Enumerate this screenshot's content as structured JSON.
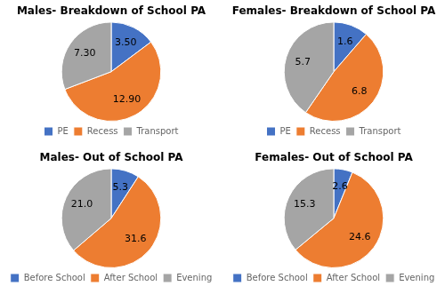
{
  "chart_data": [
    {
      "type": "pie",
      "title": "Males- Breakdown of School PA",
      "categories": [
        "PE",
        "Recess",
        "Transport"
      ],
      "values": [
        3.5,
        12.9,
        7.3
      ],
      "value_labels": [
        "3.50",
        "12.90",
        "7.30"
      ],
      "colors": [
        "#4472C4",
        "#ED7D31",
        "#A5A5A5"
      ],
      "data_labels": true,
      "legend": "bottom"
    },
    {
      "type": "pie",
      "title": "Females- Breakdown of School PA",
      "categories": [
        "PE",
        "Recess",
        "Transport"
      ],
      "values": [
        1.6,
        6.8,
        5.7
      ],
      "colors": [
        "#4472C4",
        "#ED7D31",
        "#A5A5A5"
      ],
      "data_labels": true,
      "legend": "bottom"
    },
    {
      "type": "pie",
      "title": "Males- Out of School PA",
      "categories": [
        "Before School",
        "After School",
        "Evening"
      ],
      "values": [
        5.3,
        31.6,
        21.0
      ],
      "value_labels": [
        "5.3",
        "31.6",
        "21.0"
      ],
      "colors": [
        "#4472C4",
        "#ED7D31",
        "#A5A5A5"
      ],
      "data_labels": true,
      "legend": "bottom"
    },
    {
      "type": "pie",
      "title": "Females- Out of School PA",
      "categories": [
        "Before School",
        "After School",
        "Evening"
      ],
      "values": [
        2.6,
        24.6,
        15.3
      ],
      "colors": [
        "#4472C4",
        "#ED7D31",
        "#A5A5A5"
      ],
      "data_labels": true,
      "legend": "bottom"
    }
  ]
}
